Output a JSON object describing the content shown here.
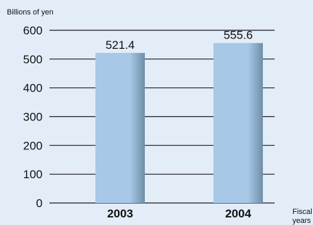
{
  "chart_data": {
    "type": "bar",
    "ylabel": "Billions of yen",
    "xlabel_lines": [
      "Fiscal",
      "years"
    ],
    "categories": [
      "2003",
      "2004"
    ],
    "values": [
      521.4,
      555.6
    ],
    "value_labels": [
      "521.4",
      "555.6"
    ],
    "ylim": [
      0,
      600
    ],
    "yticks": [
      0,
      100,
      200,
      300,
      400,
      500,
      600
    ],
    "grid": true,
    "colors": {
      "background": "#e3edf8",
      "bar_light": "#a7c8e6",
      "bar_shade": "#6f8fa8",
      "grid": "#1a1a1a",
      "text": "#111111"
    }
  }
}
